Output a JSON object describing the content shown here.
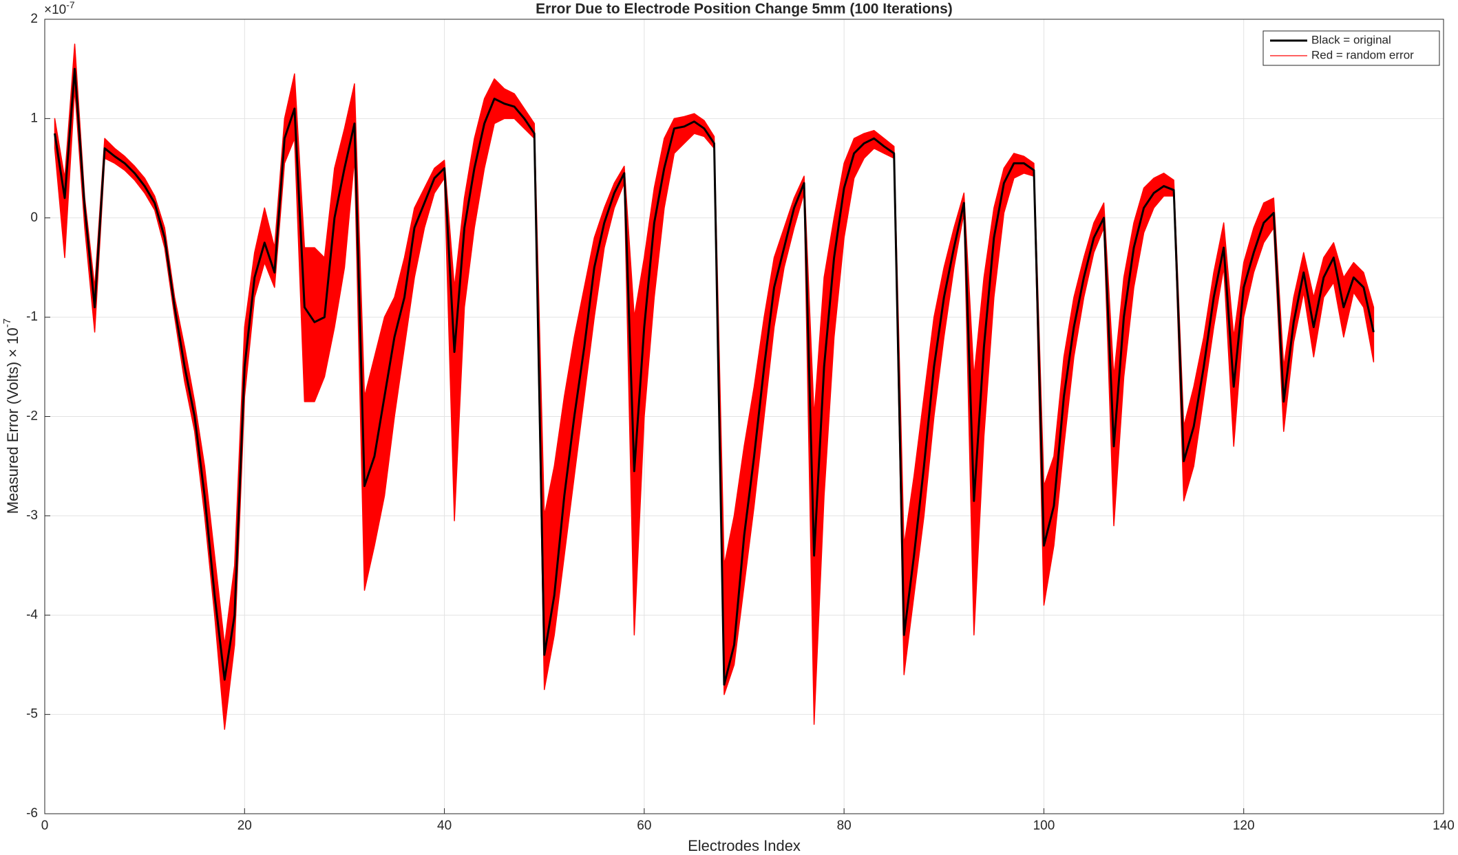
{
  "chart_data": {
    "type": "line",
    "title": "Error Due to Electrode Position Change 5mm (100 Iterations)",
    "xlabel": "Electrodes Index",
    "ylabel": {
      "text": "Measured  Error  (Volts)  × 10",
      "exponent": "-7"
    },
    "y_multiplier": {
      "base": "×10",
      "exponent": "-7"
    },
    "xlim": [
      0,
      140
    ],
    "ylim": [
      -6,
      2
    ],
    "xticks": [
      0,
      20,
      40,
      60,
      80,
      100,
      120,
      140
    ],
    "yticks": [
      -6,
      -5,
      -4,
      -3,
      -2,
      -1,
      0,
      1,
      2
    ],
    "grid": true,
    "legend": "top-right",
    "x": [
      1,
      2,
      3,
      4,
      5,
      6,
      7,
      8,
      9,
      10,
      11,
      12,
      13,
      14,
      15,
      16,
      17,
      18,
      19,
      20,
      21,
      22,
      23,
      24,
      25,
      26,
      27,
      28,
      29,
      30,
      31,
      32,
      33,
      34,
      35,
      36,
      37,
      38,
      39,
      40,
      41,
      42,
      43,
      44,
      45,
      46,
      47,
      48,
      49,
      50,
      51,
      52,
      53,
      54,
      55,
      56,
      57,
      58,
      59,
      60,
      61,
      62,
      63,
      64,
      65,
      66,
      67,
      68,
      69,
      70,
      71,
      72,
      73,
      74,
      75,
      76,
      77,
      78,
      79,
      80,
      81,
      82,
      83,
      84,
      85,
      86,
      87,
      88,
      89,
      90,
      91,
      92,
      93,
      94,
      95,
      96,
      97,
      98,
      99,
      100,
      101,
      102,
      103,
      104,
      105,
      106,
      107,
      108,
      109,
      110,
      111,
      112,
      113,
      114,
      115,
      116,
      117,
      118,
      119,
      120,
      121,
      122,
      123,
      124,
      125,
      126,
      127,
      128,
      129,
      130,
      131,
      132,
      133
    ],
    "series": [
      {
        "name": "Black = original",
        "color": "#000000",
        "values": [
          0.85,
          0.2,
          1.5,
          0.1,
          -0.9,
          0.7,
          0.62,
          0.55,
          0.45,
          0.32,
          0.15,
          -0.2,
          -0.9,
          -1.5,
          -2.0,
          -2.8,
          -3.8,
          -4.65,
          -4.0,
          -1.5,
          -0.6,
          -0.25,
          -0.55,
          0.8,
          1.1,
          -0.9,
          -1.05,
          -1.0,
          0,
          0.5,
          0.95,
          -2.7,
          -2.4,
          -1.8,
          -1.2,
          -0.8,
          -0.1,
          0.15,
          0.4,
          0.5,
          -1.35,
          -0.1,
          0.5,
          0.95,
          1.2,
          1.15,
          1.12,
          1.0,
          0.85,
          -4.4,
          -3.8,
          -2.8,
          -2.0,
          -1.3,
          -0.5,
          -0.05,
          0.25,
          0.45,
          -2.55,
          -1.1,
          -0.05,
          0.5,
          0.9,
          0.92,
          0.97,
          0.9,
          0.75,
          -4.7,
          -4.3,
          -3.2,
          -2.4,
          -1.5,
          -0.7,
          -0.3,
          0.1,
          0.35,
          -3.4,
          -1.5,
          -0.4,
          0.3,
          0.65,
          0.75,
          0.8,
          0.72,
          0.65,
          -4.2,
          -3.4,
          -2.5,
          -1.5,
          -0.8,
          -0.3,
          0.15,
          -2.85,
          -1.3,
          -0.2,
          0.35,
          0.55,
          0.55,
          0.48,
          -3.3,
          -2.9,
          -1.8,
          -1.1,
          -0.6,
          -0.2,
          0,
          -2.3,
          -1.0,
          -0.3,
          0.1,
          0.25,
          0.32,
          0.28,
          -2.45,
          -2.1,
          -1.5,
          -0.8,
          -0.3,
          -1.7,
          -0.7,
          -0.35,
          -0.05,
          0.05,
          -1.85,
          -1.05,
          -0.55,
          -1.1,
          -0.6,
          -0.4,
          -0.9,
          -0.6,
          -0.7,
          -1.15
        ]
      },
      {
        "name": "Red = random error",
        "color": "#ff0000",
        "low": [
          0.7,
          -0.4,
          1.3,
          -0.1,
          -1.15,
          0.6,
          0.55,
          0.48,
          0.38,
          0.25,
          0.08,
          -0.3,
          -1.0,
          -1.65,
          -2.15,
          -3.0,
          -4.0,
          -5.15,
          -4.3,
          -1.8,
          -0.8,
          -0.45,
          -0.7,
          0.55,
          0.8,
          -1.85,
          -1.85,
          -1.6,
          -1.1,
          -0.5,
          0.6,
          -3.75,
          -3.3,
          -2.8,
          -2.0,
          -1.3,
          -0.6,
          -0.1,
          0.25,
          0.4,
          -3.05,
          -0.9,
          -0.1,
          0.5,
          0.95,
          1.0,
          1.0,
          0.9,
          0.8,
          -4.75,
          -4.2,
          -3.4,
          -2.6,
          -1.8,
          -1.0,
          -0.3,
          0.1,
          0.35,
          -4.2,
          -2.0,
          -0.8,
          0.1,
          0.65,
          0.75,
          0.85,
          0.82,
          0.7,
          -4.8,
          -4.5,
          -3.7,
          -2.9,
          -2.0,
          -1.1,
          -0.5,
          -0.1,
          0.25,
          -5.1,
          -2.8,
          -1.2,
          -0.2,
          0.4,
          0.6,
          0.7,
          0.65,
          0.6,
          -4.6,
          -3.8,
          -3.0,
          -2.0,
          -1.2,
          -0.5,
          0.05,
          -4.2,
          -2.2,
          -0.8,
          0.05,
          0.4,
          0.45,
          0.42,
          -3.9,
          -3.3,
          -2.3,
          -1.4,
          -0.8,
          -0.35,
          -0.1,
          -3.1,
          -1.6,
          -0.7,
          -0.15,
          0.1,
          0.22,
          0.22,
          -2.85,
          -2.5,
          -1.8,
          -1.1,
          -0.5,
          -2.3,
          -1.0,
          -0.55,
          -0.25,
          -0.1,
          -2.15,
          -1.25,
          -0.75,
          -1.4,
          -0.8,
          -0.65,
          -1.2,
          -0.75,
          -0.9,
          -1.45
        ],
        "high": [
          1.0,
          0.4,
          1.75,
          0.2,
          -0.7,
          0.8,
          0.7,
          0.62,
          0.52,
          0.4,
          0.22,
          -0.1,
          -0.8,
          -1.3,
          -1.85,
          -2.5,
          -3.4,
          -4.3,
          -3.5,
          -1.1,
          -0.35,
          0.1,
          -0.3,
          1.0,
          1.45,
          -0.3,
          -0.3,
          -0.4,
          0.5,
          0.9,
          1.35,
          -1.8,
          -1.4,
          -1.0,
          -0.8,
          -0.4,
          0.1,
          0.3,
          0.5,
          0.58,
          -0.7,
          0.2,
          0.8,
          1.2,
          1.4,
          1.3,
          1.25,
          1.1,
          0.95,
          -3.0,
          -2.5,
          -1.8,
          -1.2,
          -0.7,
          -0.2,
          0.1,
          0.35,
          0.52,
          -1.0,
          -0.4,
          0.3,
          0.8,
          1.0,
          1.02,
          1.05,
          0.98,
          0.82,
          -3.5,
          -3.0,
          -2.3,
          -1.7,
          -1.0,
          -0.4,
          -0.1,
          0.2,
          0.42,
          -2.0,
          -0.6,
          0,
          0.55,
          0.8,
          0.85,
          0.88,
          0.8,
          0.72,
          -3.3,
          -2.6,
          -1.8,
          -1.0,
          -0.5,
          -0.1,
          0.25,
          -1.6,
          -0.6,
          0.1,
          0.5,
          0.65,
          0.62,
          0.55,
          -2.7,
          -2.4,
          -1.4,
          -0.8,
          -0.4,
          -0.05,
          0.15,
          -1.6,
          -0.6,
          -0.05,
          0.3,
          0.4,
          0.45,
          0.38,
          -2.1,
          -1.7,
          -1.2,
          -0.55,
          -0.05,
          -1.2,
          -0.45,
          -0.1,
          0.15,
          0.2,
          -1.5,
          -0.8,
          -0.35,
          -0.8,
          -0.4,
          -0.25,
          -0.6,
          -0.45,
          -0.55,
          -0.9
        ]
      }
    ]
  }
}
